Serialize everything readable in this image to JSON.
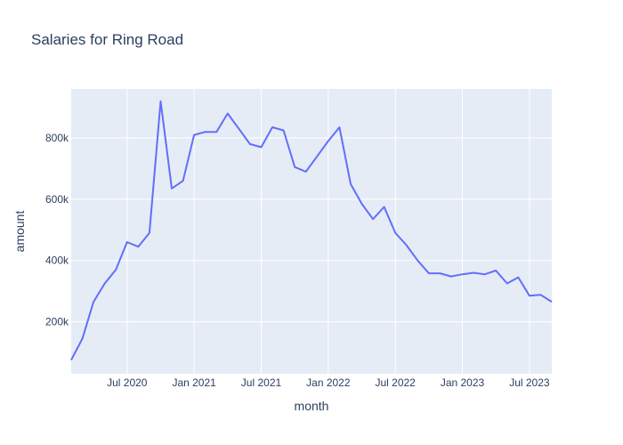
{
  "chart_data": {
    "type": "line",
    "title": "Salaries for Ring Road",
    "xlabel": "month",
    "ylabel": "amount",
    "colors": {
      "line": "#636efa",
      "plot_bg": "#e5ecf6",
      "grid": "#ffffff",
      "text": "#2a3f5f"
    },
    "grid": true,
    "legend": "none",
    "xlim": [
      "2020-02",
      "2023-09"
    ],
    "ylim": [
      30000,
      960000
    ],
    "x_ticks": [
      {
        "month": "2020-07",
        "label": "Jul 2020"
      },
      {
        "month": "2021-01",
        "label": "Jan 2021"
      },
      {
        "month": "2021-07",
        "label": "Jul 2021"
      },
      {
        "month": "2022-01",
        "label": "Jan 2022"
      },
      {
        "month": "2022-07",
        "label": "Jul 2022"
      },
      {
        "month": "2023-01",
        "label": "Jan 2023"
      },
      {
        "month": "2023-07",
        "label": "Jul 2023"
      }
    ],
    "y_ticks": [
      {
        "value": 200000,
        "label": "200k"
      },
      {
        "value": 400000,
        "label": "400k"
      },
      {
        "value": 600000,
        "label": "600k"
      },
      {
        "value": 800000,
        "label": "800k"
      }
    ],
    "series": [
      {
        "x": [
          "2020-02",
          "2020-03",
          "2020-04",
          "2020-05",
          "2020-06",
          "2020-07",
          "2020-08",
          "2020-09",
          "2020-10",
          "2020-11",
          "2020-12",
          "2021-01",
          "2021-02",
          "2021-03",
          "2021-04",
          "2021-05",
          "2021-06",
          "2021-07",
          "2021-08",
          "2021-09",
          "2021-10",
          "2021-11",
          "2021-12",
          "2022-01",
          "2022-02",
          "2022-03",
          "2022-04",
          "2022-05",
          "2022-06",
          "2022-07",
          "2022-08",
          "2022-09",
          "2022-10",
          "2022-11",
          "2022-12",
          "2023-01",
          "2023-02",
          "2023-03",
          "2023-04",
          "2023-05",
          "2023-06",
          "2023-07",
          "2023-08",
          "2023-09"
        ],
        "y": [
          75000,
          145000,
          265000,
          325000,
          370000,
          460000,
          445000,
          490000,
          920000,
          635000,
          660000,
          810000,
          820000,
          820000,
          880000,
          830000,
          780000,
          770000,
          835000,
          825000,
          705000,
          690000,
          740000,
          790000,
          835000,
          650000,
          585000,
          535000,
          575000,
          490000,
          450000,
          400000,
          358000,
          358000,
          348000,
          355000,
          360000,
          355000,
          367000,
          325000,
          345000,
          285000,
          288000,
          265000
        ]
      }
    ]
  }
}
